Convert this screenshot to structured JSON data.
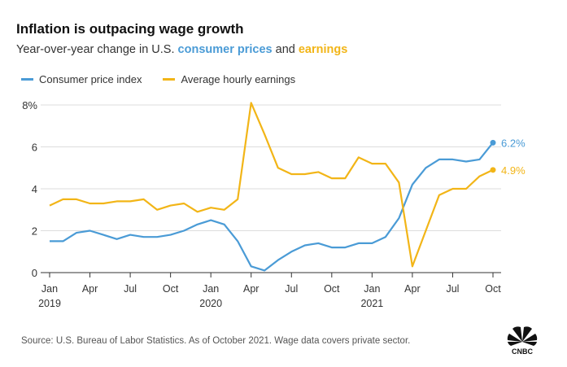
{
  "header": {
    "title": "Inflation is outpacing wage growth",
    "subtitle_prefix": "Year-over-year change in U.S. ",
    "subtitle_cpi": "consumer prices",
    "subtitle_and": " and ",
    "subtitle_earnings": "earnings"
  },
  "footer": {
    "source": "Source: U.S. Bureau of Labor Statistics. As of October 2021. Wage data covers private sector.",
    "logo_text": "CNBC"
  },
  "colors": {
    "cpi": "#4a9bd6",
    "earnings": "#f2b517",
    "grid": "#dddddd",
    "axis": "#333333"
  },
  "chart_data": {
    "type": "line",
    "x": [
      "Jan 2019",
      "Feb 2019",
      "Mar 2019",
      "Apr 2019",
      "May 2019",
      "Jun 2019",
      "Jul 2019",
      "Aug 2019",
      "Sep 2019",
      "Oct 2019",
      "Nov 2019",
      "Dec 2019",
      "Jan 2020",
      "Feb 2020",
      "Mar 2020",
      "Apr 2020",
      "May 2020",
      "Jun 2020",
      "Jul 2020",
      "Aug 2020",
      "Sep 2020",
      "Oct 2020",
      "Nov 2020",
      "Dec 2020",
      "Jan 2021",
      "Feb 2021",
      "Mar 2021",
      "Apr 2021",
      "May 2021",
      "Jun 2021",
      "Jul 2021",
      "Aug 2021",
      "Sep 2021",
      "Oct 2021"
    ],
    "series": [
      {
        "name": "Consumer price index",
        "values": [
          1.5,
          1.5,
          1.9,
          2.0,
          1.8,
          1.6,
          1.8,
          1.7,
          1.7,
          1.8,
          2.0,
          2.3,
          2.5,
          2.3,
          1.5,
          0.3,
          0.1,
          0.6,
          1.0,
          1.3,
          1.4,
          1.2,
          1.2,
          1.4,
          1.4,
          1.7,
          2.6,
          4.2,
          5.0,
          5.4,
          5.4,
          5.3,
          5.4,
          6.2
        ],
        "end_label": "6.2%"
      },
      {
        "name": "Average hourly earnings",
        "values": [
          3.2,
          3.5,
          3.5,
          3.3,
          3.3,
          3.4,
          3.4,
          3.5,
          3.0,
          3.2,
          3.3,
          2.9,
          3.1,
          3.0,
          3.5,
          8.1,
          6.6,
          5.0,
          4.7,
          4.7,
          4.8,
          4.5,
          4.5,
          5.5,
          5.2,
          5.2,
          4.3,
          0.3,
          2.0,
          3.7,
          4.0,
          4.0,
          4.6,
          4.9
        ],
        "end_label": "4.9%"
      }
    ],
    "x_ticks": [
      {
        "index": 0,
        "label": "Jan",
        "year": "2019"
      },
      {
        "index": 3,
        "label": "Apr"
      },
      {
        "index": 6,
        "label": "Jul"
      },
      {
        "index": 9,
        "label": "Oct"
      },
      {
        "index": 12,
        "label": "Jan",
        "year": "2020"
      },
      {
        "index": 15,
        "label": "Apr"
      },
      {
        "index": 18,
        "label": "Jul"
      },
      {
        "index": 21,
        "label": "Oct"
      },
      {
        "index": 24,
        "label": "Jan",
        "year": "2021"
      },
      {
        "index": 27,
        "label": "Apr"
      },
      {
        "index": 30,
        "label": "Jul"
      },
      {
        "index": 33,
        "label": "Oct"
      }
    ],
    "y_ticks": [
      {
        "value": 0,
        "label": "0"
      },
      {
        "value": 2,
        "label": "2"
      },
      {
        "value": 4,
        "label": "4"
      },
      {
        "value": 6,
        "label": "6"
      },
      {
        "value": 8,
        "label": "8%"
      }
    ],
    "ylim": [
      0,
      8
    ],
    "grid": true,
    "legend": "top-left"
  }
}
